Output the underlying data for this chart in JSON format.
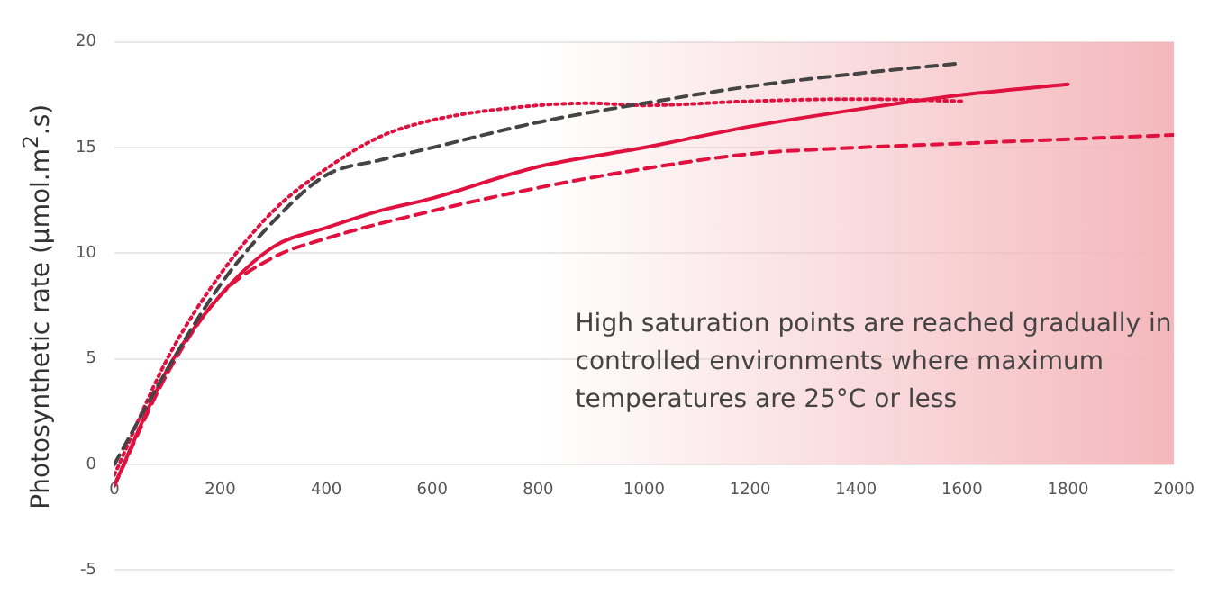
{
  "chart_data": {
    "type": "line",
    "ylabel": "Photosynthetic rate (μmol.m$^{2}$.s)",
    "xlim": [
      0,
      2000
    ],
    "xticks": [
      0,
      200,
      400,
      600,
      800,
      1000,
      1200,
      1400,
      1600,
      1800,
      2000
    ],
    "ylim": [
      -5,
      20
    ],
    "yticks": [
      -5,
      0,
      5,
      10,
      15,
      20
    ],
    "grid": "y",
    "legend": false,
    "marker": "none",
    "series": [
      {
        "color": "#444444",
        "line_style": "dashed",
        "x": [
          0,
          100,
          200,
          300,
          400,
          500,
          600,
          800,
          1000,
          1200,
          1400,
          1600
        ],
        "values": [
          0,
          4.5,
          8.5,
          11.5,
          13.7,
          14.4,
          15,
          16.2,
          17.1,
          17.9,
          18.5,
          19
        ]
      },
      {
        "color": "#e0103f",
        "line_style": "dotted",
        "x": [
          0,
          100,
          200,
          300,
          400,
          500,
          600,
          800,
          900,
          1000,
          1200,
          1400,
          1600
        ],
        "values": [
          -0.5,
          5,
          9,
          12,
          14,
          15.5,
          16.3,
          17,
          17.1,
          17,
          17.2,
          17.3,
          17.2
        ]
      },
      {
        "color": "#e0103f",
        "line_style": "solid",
        "x": [
          0,
          100,
          200,
          300,
          400,
          500,
          600,
          800,
          1000,
          1200,
          1400,
          1600,
          1800
        ],
        "values": [
          -1,
          4.5,
          8,
          10.3,
          11.2,
          12,
          12.6,
          14.1,
          15,
          16,
          16.8,
          17.5,
          18
        ]
      },
      {
        "color": "#e0103f",
        "line_style": "dashed",
        "x": [
          0,
          100,
          200,
          300,
          400,
          600,
          800,
          1000,
          1200,
          1400,
          1600,
          1800,
          2000
        ],
        "values": [
          -1,
          4.3,
          8,
          9.8,
          10.7,
          12,
          13.1,
          14,
          14.7,
          15,
          15.2,
          15.4,
          15.6
        ]
      }
    ],
    "bands": [
      {
        "axis": "x",
        "from": 800,
        "to": 2000,
        "color": "#f4b8bc"
      }
    ],
    "annotations": [
      "High saturation points are reached gradually in controlled environments where maximum temperatures are 25°C or less"
    ]
  }
}
